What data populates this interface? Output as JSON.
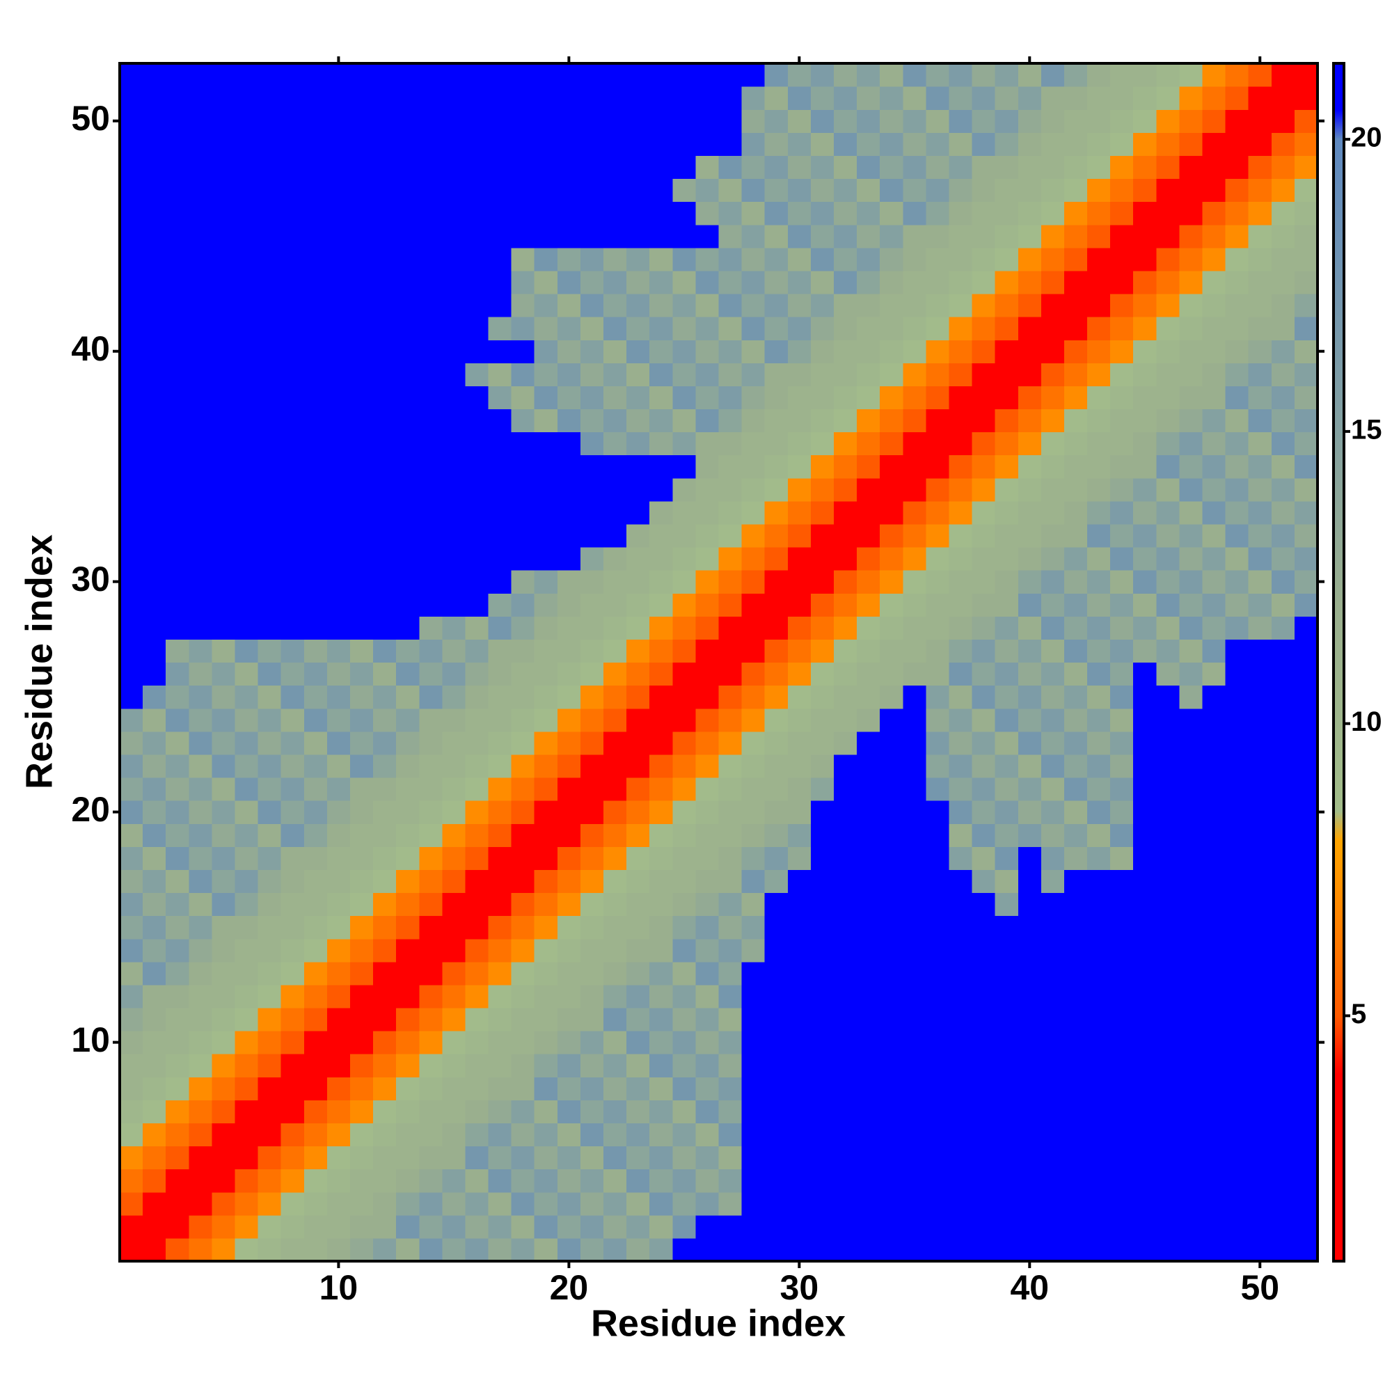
{
  "chart_data": {
    "type": "heatmap",
    "x_label": "Residue index",
    "y_label": "Residue index",
    "xlim": [
      0.5,
      52.5
    ],
    "ylim": [
      0.5,
      52.5
    ],
    "xticks": [
      10,
      20,
      30,
      40,
      50
    ],
    "yticks": [
      10,
      20,
      30,
      40,
      50
    ],
    "symmetric": true,
    "colorbar": {
      "lim": [
        0.8,
        21.3
      ],
      "ticks": [
        5,
        10,
        15,
        20
      ],
      "stops": [
        0.8,
        4,
        5,
        8,
        8.5,
        12,
        20,
        20.5,
        21.3
      ],
      "colors": [
        "#ff0000",
        "#ff0000",
        "#ff5a00",
        "#ffa500",
        "#a3bd8a",
        "#9aaf8e",
        "#5f89c0",
        "#0000ff",
        "#0000ff"
      ]
    },
    "z": [
      [
        0
      ],
      [
        4,
        0
      ],
      [
        5,
        4,
        0
      ],
      [
        6,
        5,
        4,
        0
      ],
      [
        7,
        6,
        5,
        4,
        0
      ],
      [
        9,
        7,
        6,
        5,
        4,
        0
      ],
      [
        10,
        9,
        7,
        6,
        5,
        4,
        0
      ],
      [
        11,
        10,
        9,
        7,
        6,
        5,
        4,
        0
      ],
      [
        11,
        11,
        10,
        9,
        7,
        6,
        5,
        4,
        0
      ],
      [
        12,
        11,
        11,
        10,
        9,
        7,
        6,
        5,
        4,
        0
      ],
      [
        13,
        12,
        11,
        11,
        10,
        9,
        7,
        6,
        5,
        4,
        0
      ],
      [
        15,
        12,
        12,
        11,
        11,
        10,
        9,
        7,
        6,
        5,
        4,
        0
      ],
      [
        12,
        17,
        14,
        12,
        11,
        11,
        10,
        9,
        7,
        6,
        5,
        4,
        0
      ],
      [
        17,
        14,
        16,
        13,
        12,
        11,
        11,
        10,
        9,
        7,
        6,
        5,
        4,
        0
      ],
      [
        14,
        16,
        13,
        15,
        12,
        12,
        11,
        11,
        10,
        9,
        7,
        6,
        5,
        4,
        0
      ],
      [
        16,
        13,
        15,
        12,
        17,
        14,
        12,
        11,
        11,
        10,
        9,
        7,
        6,
        5,
        4,
        0
      ],
      [
        13,
        15,
        12,
        17,
        14,
        16,
        13,
        12,
        11,
        11,
        10,
        9,
        7,
        6,
        5,
        4,
        0
      ],
      [
        15,
        12,
        17,
        14,
        16,
        13,
        15,
        12,
        12,
        11,
        11,
        10,
        9,
        7,
        6,
        5,
        4,
        0
      ],
      [
        12,
        17,
        14,
        16,
        13,
        15,
        12,
        17,
        14,
        12,
        11,
        11,
        10,
        9,
        7,
        6,
        5,
        4,
        0
      ],
      [
        17,
        14,
        16,
        13,
        15,
        12,
        17,
        14,
        16,
        13,
        12,
        11,
        11,
        10,
        9,
        7,
        6,
        5,
        4,
        0
      ],
      [
        14,
        16,
        13,
        15,
        12,
        17,
        14,
        16,
        13,
        15,
        12,
        12,
        11,
        11,
        10,
        9,
        7,
        6,
        5,
        4,
        0
      ],
      [
        16,
        13,
        15,
        12,
        17,
        14,
        16,
        13,
        15,
        12,
        17,
        14,
        12,
        11,
        11,
        10,
        9,
        7,
        6,
        5,
        4,
        0
      ],
      [
        13,
        15,
        12,
        17,
        14,
        16,
        13,
        15,
        12,
        17,
        14,
        16,
        13,
        12,
        11,
        11,
        10,
        9,
        7,
        6,
        5,
        4,
        0
      ],
      [
        15,
        12,
        17,
        14,
        16,
        13,
        15,
        12,
        17,
        14,
        16,
        13,
        15,
        12,
        12,
        11,
        11,
        10,
        9,
        7,
        6,
        5,
        4,
        0
      ],
      [
        21,
        17,
        14,
        16,
        13,
        15,
        12,
        17,
        14,
        16,
        13,
        15,
        12,
        17,
        14,
        12,
        11,
        11,
        10,
        9,
        7,
        6,
        5,
        4,
        0
      ],
      [
        21,
        21,
        16,
        13,
        15,
        12,
        17,
        14,
        16,
        13,
        15,
        12,
        17,
        14,
        16,
        13,
        12,
        11,
        11,
        10,
        9,
        7,
        6,
        5,
        4,
        0
      ],
      [
        21,
        21,
        13,
        15,
        12,
        17,
        14,
        16,
        13,
        15,
        12,
        17,
        14,
        16,
        13,
        15,
        12,
        12,
        11,
        11,
        10,
        9,
        7,
        6,
        5,
        4,
        0
      ],
      [
        21,
        21,
        21,
        21,
        21,
        21,
        21,
        21,
        21,
        21,
        21,
        21,
        21,
        13,
        15,
        12,
        17,
        14,
        12,
        11,
        11,
        10,
        9,
        7,
        6,
        5,
        4,
        0
      ],
      [
        21,
        21,
        21,
        21,
        21,
        21,
        21,
        21,
        21,
        21,
        21,
        21,
        21,
        21,
        21,
        21,
        14,
        16,
        13,
        12,
        11,
        11,
        10,
        9,
        7,
        6,
        5,
        4,
        0
      ],
      [
        21,
        21,
        21,
        21,
        21,
        21,
        21,
        21,
        21,
        21,
        21,
        21,
        21,
        21,
        21,
        21,
        21,
        13,
        15,
        12,
        12,
        11,
        11,
        10,
        9,
        7,
        6,
        5,
        4,
        0
      ],
      [
        21,
        21,
        21,
        21,
        21,
        21,
        21,
        21,
        21,
        21,
        21,
        21,
        21,
        21,
        21,
        21,
        21,
        21,
        21,
        21,
        14,
        12,
        11,
        11,
        10,
        9,
        7,
        6,
        5,
        4,
        0
      ],
      [
        21,
        21,
        21,
        21,
        21,
        21,
        21,
        21,
        21,
        21,
        21,
        21,
        21,
        21,
        21,
        21,
        21,
        21,
        21,
        21,
        21,
        21,
        12,
        11,
        11,
        10,
        9,
        7,
        6,
        5,
        4,
        0
      ],
      [
        21,
        21,
        21,
        21,
        21,
        21,
        21,
        21,
        21,
        21,
        21,
        21,
        21,
        21,
        21,
        21,
        21,
        21,
        21,
        21,
        21,
        21,
        21,
        12,
        11,
        11,
        10,
        9,
        7,
        6,
        5,
        4,
        0
      ],
      [
        21,
        21,
        21,
        21,
        21,
        21,
        21,
        21,
        21,
        21,
        21,
        21,
        21,
        21,
        21,
        21,
        21,
        21,
        21,
        21,
        21,
        21,
        21,
        21,
        12,
        11,
        11,
        10,
        9,
        7,
        6,
        5,
        4,
        0
      ],
      [
        21,
        21,
        21,
        21,
        21,
        21,
        21,
        21,
        21,
        21,
        21,
        21,
        21,
        21,
        21,
        21,
        21,
        21,
        21,
        21,
        21,
        21,
        21,
        21,
        21,
        12,
        11,
        11,
        10,
        9,
        7,
        6,
        5,
        4,
        0
      ],
      [
        21,
        21,
        21,
        21,
        21,
        21,
        21,
        21,
        21,
        21,
        21,
        21,
        21,
        21,
        21,
        21,
        21,
        21,
        21,
        21,
        17,
        14,
        16,
        13,
        15,
        12,
        12,
        11,
        11,
        10,
        9,
        7,
        6,
        5,
        4,
        0
      ],
      [
        21,
        21,
        21,
        21,
        21,
        21,
        21,
        21,
        21,
        21,
        21,
        21,
        21,
        21,
        21,
        21,
        21,
        15,
        12,
        17,
        14,
        16,
        13,
        15,
        12,
        17,
        14,
        12,
        11,
        11,
        10,
        9,
        7,
        6,
        5,
        4,
        0
      ],
      [
        21,
        21,
        21,
        21,
        21,
        21,
        21,
        21,
        21,
        21,
        21,
        21,
        21,
        21,
        21,
        21,
        15,
        12,
        17,
        14,
        16,
        13,
        15,
        12,
        17,
        14,
        16,
        13,
        12,
        11,
        11,
        10,
        9,
        7,
        6,
        5,
        4,
        0
      ],
      [
        21,
        21,
        21,
        21,
        21,
        21,
        21,
        21,
        21,
        21,
        21,
        21,
        21,
        21,
        21,
        15,
        12,
        17,
        14,
        16,
        13,
        15,
        12,
        17,
        14,
        16,
        13,
        15,
        12,
        12,
        11,
        11,
        10,
        9,
        7,
        6,
        5,
        4,
        0
      ],
      [
        21,
        21,
        21,
        21,
        21,
        21,
        21,
        21,
        21,
        21,
        21,
        21,
        21,
        21,
        21,
        21,
        21,
        21,
        16,
        13,
        15,
        12,
        17,
        14,
        16,
        13,
        15,
        12,
        17,
        14,
        12,
        11,
        11,
        10,
        9,
        7,
        6,
        5,
        4,
        0
      ],
      [
        21,
        21,
        21,
        21,
        21,
        21,
        21,
        21,
        21,
        21,
        21,
        21,
        21,
        21,
        21,
        21,
        14,
        16,
        13,
        15,
        12,
        17,
        14,
        16,
        13,
        15,
        12,
        17,
        14,
        16,
        13,
        12,
        11,
        11,
        10,
        9,
        7,
        6,
        5,
        4,
        0
      ],
      [
        21,
        21,
        21,
        21,
        21,
        21,
        21,
        21,
        21,
        21,
        21,
        21,
        21,
        21,
        21,
        21,
        21,
        13,
        15,
        12,
        17,
        14,
        16,
        13,
        15,
        12,
        17,
        14,
        16,
        13,
        15,
        12,
        12,
        11,
        11,
        10,
        9,
        7,
        6,
        5,
        4,
        0
      ],
      [
        21,
        21,
        21,
        21,
        21,
        21,
        21,
        21,
        21,
        21,
        21,
        21,
        21,
        21,
        21,
        21,
        21,
        15,
        12,
        17,
        14,
        16,
        13,
        15,
        12,
        17,
        14,
        16,
        13,
        15,
        12,
        17,
        14,
        12,
        11,
        11,
        10,
        9,
        7,
        6,
        5,
        4,
        0
      ],
      [
        21,
        21,
        21,
        21,
        21,
        21,
        21,
        21,
        21,
        21,
        21,
        21,
        21,
        21,
        21,
        21,
        21,
        12,
        17,
        14,
        16,
        13,
        15,
        12,
        17,
        14,
        16,
        13,
        15,
        12,
        17,
        14,
        16,
        13,
        12,
        11,
        11,
        10,
        9,
        7,
        6,
        5,
        4,
        0
      ],
      [
        21,
        21,
        21,
        21,
        21,
        21,
        21,
        21,
        21,
        21,
        21,
        21,
        21,
        21,
        21,
        21,
        21,
        21,
        21,
        21,
        21,
        21,
        21,
        21,
        21,
        21,
        13,
        15,
        12,
        17,
        14,
        16,
        13,
        15,
        12,
        12,
        11,
        11,
        10,
        9,
        7,
        6,
        5,
        4,
        0
      ],
      [
        21,
        21,
        21,
        21,
        21,
        21,
        21,
        21,
        21,
        21,
        21,
        21,
        21,
        21,
        21,
        21,
        21,
        21,
        21,
        21,
        21,
        21,
        21,
        21,
        21,
        13,
        15,
        12,
        17,
        14,
        16,
        13,
        15,
        12,
        17,
        14,
        12,
        11,
        11,
        10,
        9,
        7,
        6,
        5,
        4,
        0
      ],
      [
        21,
        21,
        21,
        21,
        21,
        21,
        21,
        21,
        21,
        21,
        21,
        21,
        21,
        21,
        21,
        21,
        21,
        21,
        21,
        21,
        21,
        21,
        21,
        21,
        13,
        15,
        12,
        17,
        14,
        16,
        13,
        15,
        12,
        17,
        14,
        16,
        13,
        12,
        11,
        11,
        10,
        9,
        7,
        6,
        5,
        4,
        0
      ],
      [
        21,
        21,
        21,
        21,
        21,
        21,
        21,
        21,
        21,
        21,
        21,
        21,
        21,
        21,
        21,
        21,
        21,
        21,
        21,
        21,
        21,
        21,
        21,
        21,
        21,
        12,
        17,
        14,
        16,
        13,
        15,
        12,
        17,
        14,
        16,
        13,
        15,
        12,
        12,
        11,
        11,
        10,
        9,
        7,
        6,
        5,
        4,
        0
      ],
      [
        21,
        21,
        21,
        21,
        21,
        21,
        21,
        21,
        21,
        21,
        21,
        21,
        21,
        21,
        21,
        21,
        21,
        21,
        21,
        21,
        21,
        21,
        21,
        21,
        21,
        21,
        21,
        16,
        13,
        15,
        12,
        17,
        14,
        16,
        13,
        15,
        12,
        17,
        14,
        12,
        11,
        11,
        10,
        9,
        7,
        6,
        5,
        4,
        0
      ],
      [
        21,
        21,
        21,
        21,
        21,
        21,
        21,
        21,
        21,
        21,
        21,
        21,
        21,
        21,
        21,
        21,
        21,
        21,
        21,
        21,
        21,
        21,
        21,
        21,
        21,
        21,
        21,
        13,
        15,
        12,
        17,
        14,
        16,
        13,
        15,
        12,
        17,
        14,
        16,
        13,
        12,
        11,
        11,
        10,
        9,
        7,
        6,
        5,
        4,
        0
      ],
      [
        21,
        21,
        21,
        21,
        21,
        21,
        21,
        21,
        21,
        21,
        21,
        21,
        21,
        21,
        21,
        21,
        21,
        21,
        21,
        21,
        21,
        21,
        21,
        21,
        21,
        21,
        21,
        15,
        12,
        17,
        14,
        16,
        13,
        15,
        12,
        17,
        14,
        16,
        13,
        15,
        12,
        12,
        11,
        11,
        10,
        9,
        7,
        6,
        5,
        4,
        0
      ],
      [
        21,
        21,
        21,
        21,
        21,
        21,
        21,
        21,
        21,
        21,
        21,
        21,
        21,
        21,
        21,
        21,
        21,
        21,
        21,
        21,
        21,
        21,
        21,
        21,
        21,
        21,
        21,
        21,
        17,
        14,
        16,
        13,
        15,
        12,
        17,
        14,
        16,
        13,
        15,
        12,
        17,
        14,
        12,
        11,
        11,
        10,
        9,
        7,
        6,
        5,
        4,
        0
      ]
    ]
  }
}
